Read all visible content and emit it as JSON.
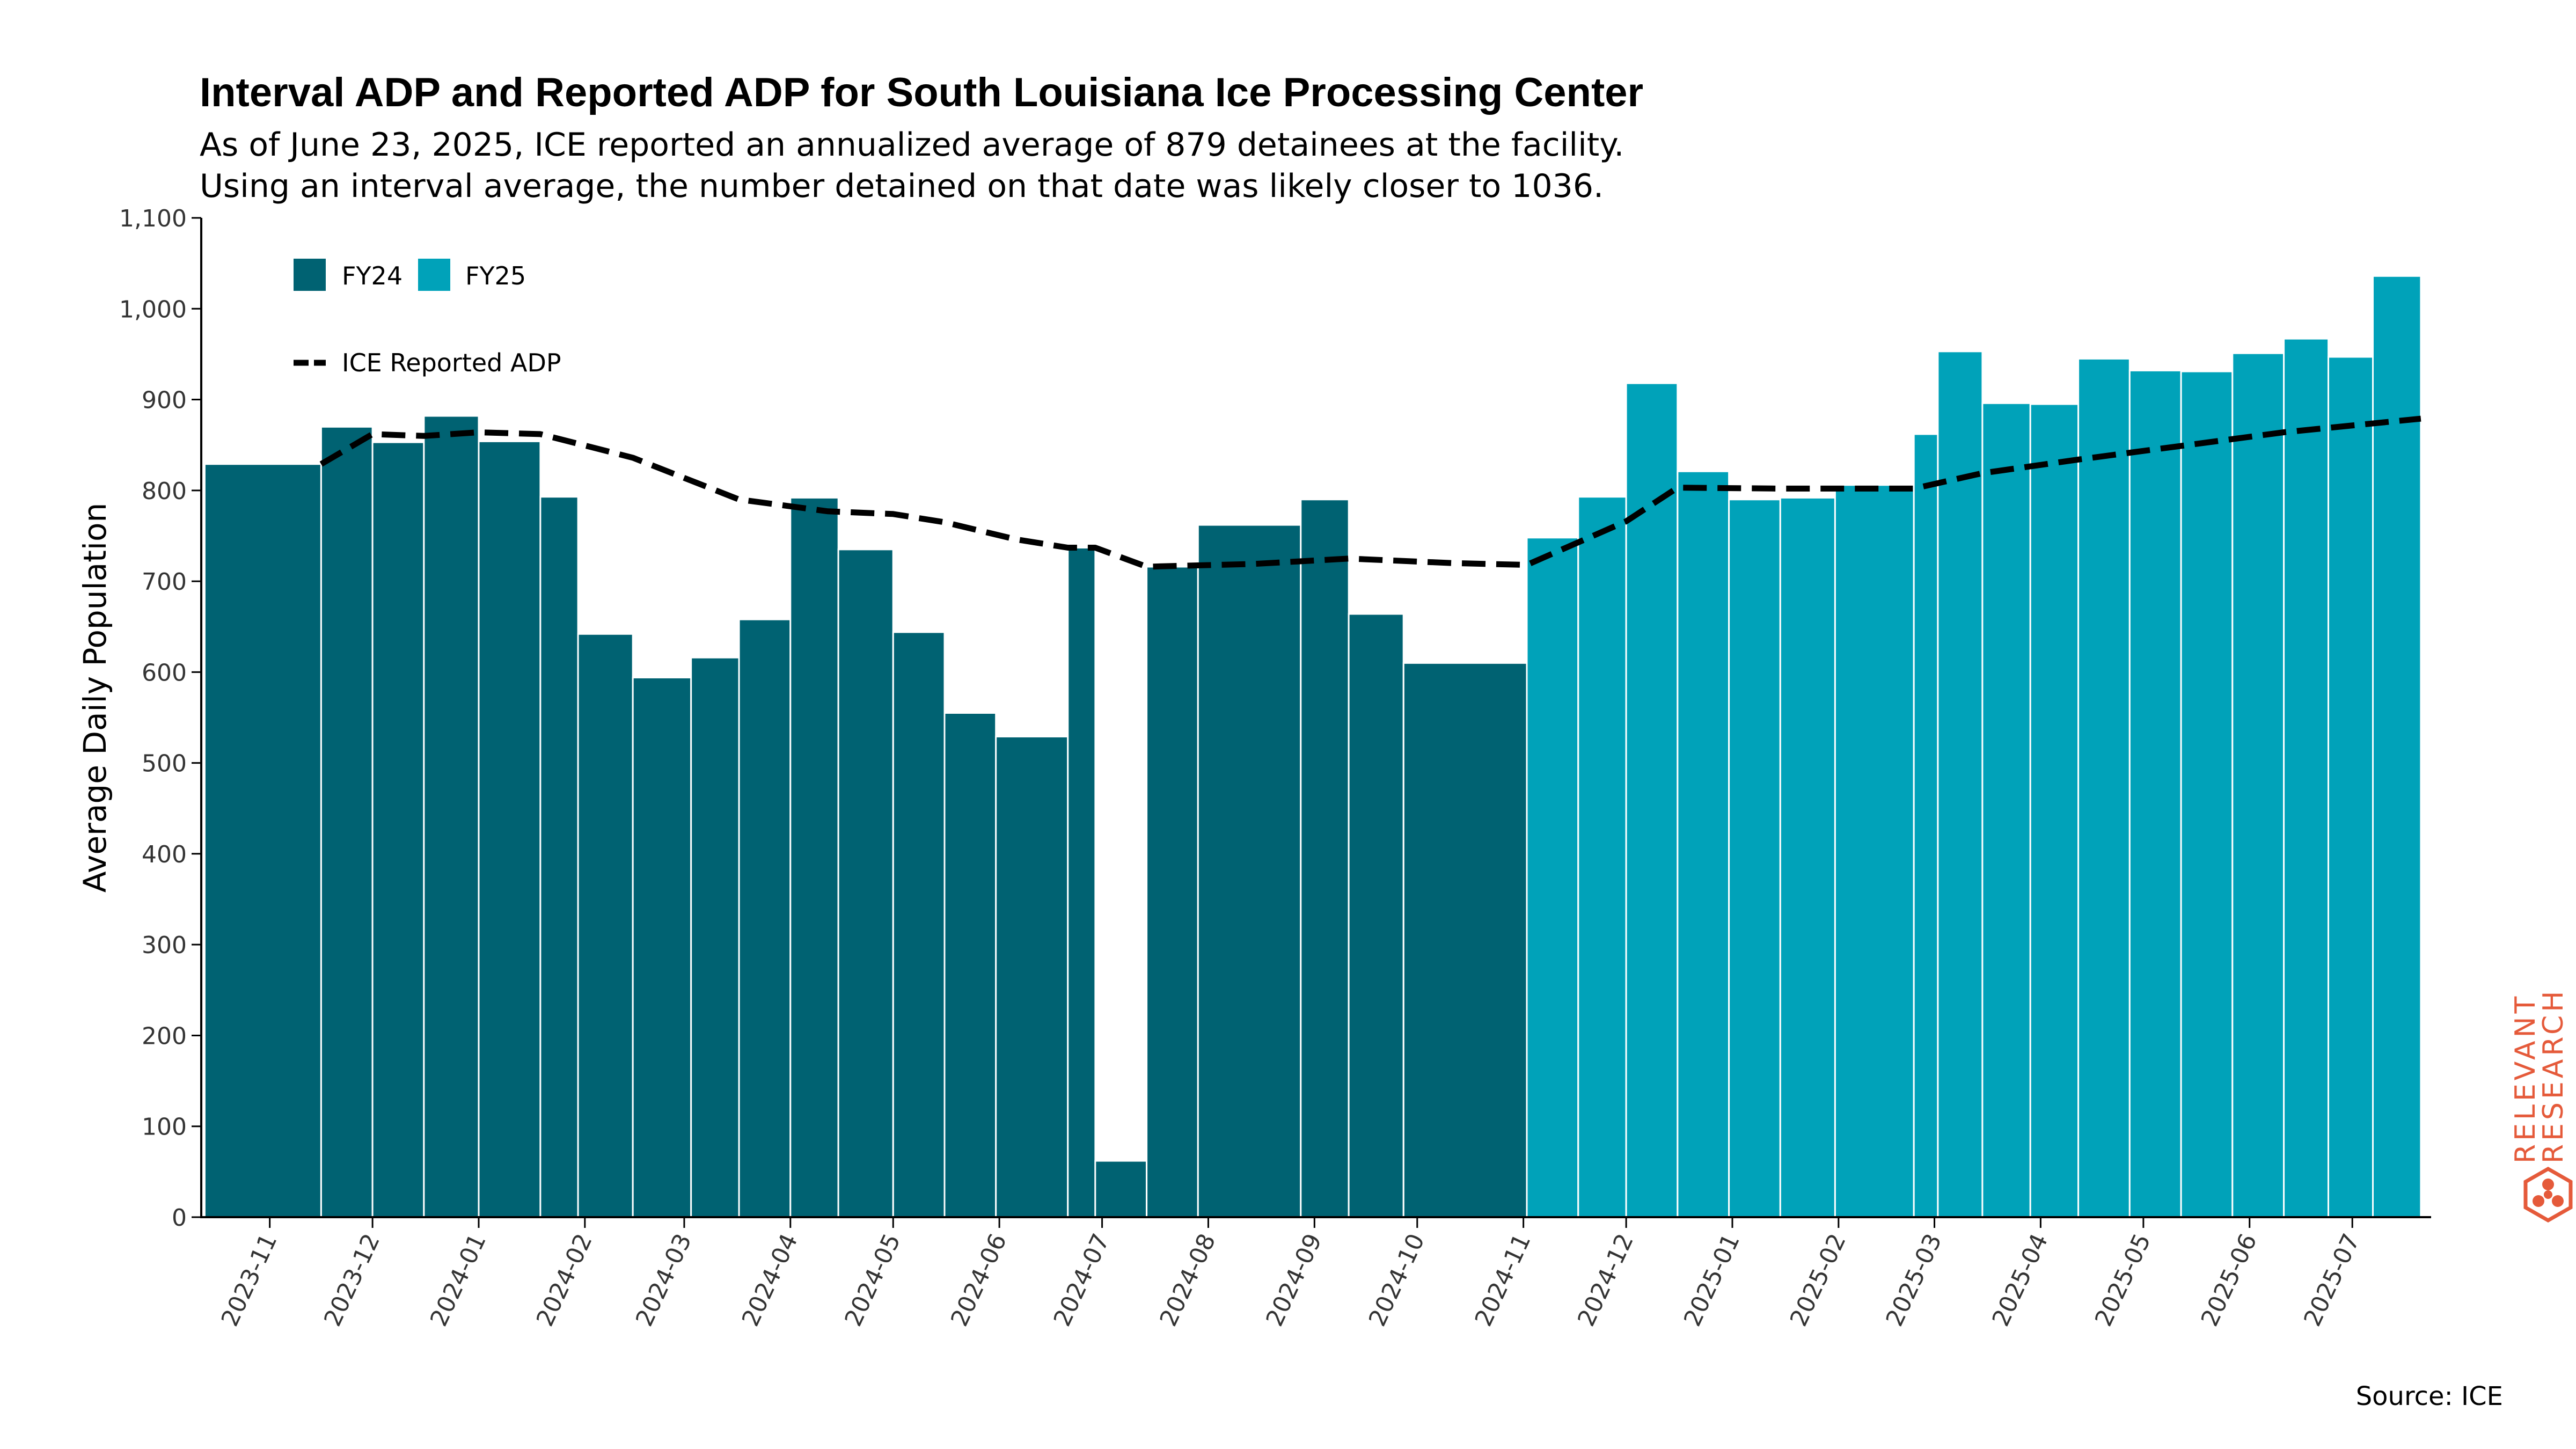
{
  "chart_data": {
    "type": "bar",
    "title": "Interval ADP and Reported ADP for South Louisiana Ice Processing Center",
    "subtitle_lines": [
      "As of June 23, 2025, ICE reported an annualized average of 879 detainees at the facility.",
      "Using an interval average, the number detained on that date was likely closer to 1036."
    ],
    "ylabel": "Average Daily Population",
    "xlabel": "",
    "ylim": [
      0,
      1100
    ],
    "yticks": [
      0,
      100,
      200,
      300,
      400,
      500,
      600,
      700,
      800,
      900,
      1000,
      1100
    ],
    "ytick_labels": [
      "0",
      "100",
      "200",
      "300",
      "400",
      "500",
      "600",
      "700",
      "800",
      "900",
      "1,000",
      "1,100"
    ],
    "xaxis_type": "date",
    "xlim": [
      "2023-10-12",
      "2025-07-24"
    ],
    "xtick_labels": [
      "2023-11",
      "2023-12",
      "2024-01",
      "2024-02",
      "2024-03",
      "2024-04",
      "2024-05",
      "2024-06",
      "2024-07",
      "2024-08",
      "2024-09",
      "2024-10",
      "2024-11",
      "2024-12",
      "2025-01",
      "2025-02",
      "2025-03",
      "2025-04",
      "2025-05",
      "2025-06",
      "2025-07"
    ],
    "xticks": [
      "2023-11-01",
      "2023-12-01",
      "2024-01-01",
      "2024-02-01",
      "2024-03-01",
      "2024-04-01",
      "2024-05-01",
      "2024-06-01",
      "2024-07-01",
      "2024-08-01",
      "2024-09-01",
      "2024-10-01",
      "2024-11-01",
      "2024-12-01",
      "2025-01-01",
      "2025-02-01",
      "2025-03-01",
      "2025-04-01",
      "2025-05-01",
      "2025-06-01",
      "2025-07-01"
    ],
    "grid": false,
    "legend_position": "top-left",
    "legend": [
      {
        "label": "FY24",
        "color": "#006272"
      },
      {
        "label": "FY25",
        "color": "#00a2b9"
      },
      {
        "label": "ICE Reported ADP",
        "style": "dashed-line",
        "color": "#000000"
      }
    ],
    "series": [
      {
        "name": "FY24",
        "color": "#006272",
        "bars": [
          {
            "start": "2023-10-13",
            "end": "2023-11-16",
            "value": 829
          },
          {
            "start": "2023-11-16",
            "end": "2023-12-01",
            "value": 870
          },
          {
            "start": "2023-12-01",
            "end": "2023-12-16",
            "value": 853
          },
          {
            "start": "2023-12-16",
            "end": "2024-01-01",
            "value": 882
          },
          {
            "start": "2024-01-01",
            "end": "2024-01-19",
            "value": 854
          },
          {
            "start": "2024-01-19",
            "end": "2024-01-30",
            "value": 793
          },
          {
            "start": "2024-01-30",
            "end": "2024-02-15",
            "value": 642
          },
          {
            "start": "2024-02-15",
            "end": "2024-03-03",
            "value": 594
          },
          {
            "start": "2024-03-03",
            "end": "2024-03-17",
            "value": 616
          },
          {
            "start": "2024-03-17",
            "end": "2024-04-01",
            "value": 658
          },
          {
            "start": "2024-04-01",
            "end": "2024-04-15",
            "value": 792
          },
          {
            "start": "2024-04-15",
            "end": "2024-05-01",
            "value": 735
          },
          {
            "start": "2024-05-01",
            "end": "2024-05-16",
            "value": 644
          },
          {
            "start": "2024-05-16",
            "end": "2024-05-31",
            "value": 555
          },
          {
            "start": "2024-05-31",
            "end": "2024-06-21",
            "value": 529
          },
          {
            "start": "2024-06-21",
            "end": "2024-06-29",
            "value": 737
          },
          {
            "start": "2024-06-29",
            "end": "2024-07-14",
            "value": 62
          },
          {
            "start": "2024-07-14",
            "end": "2024-07-29",
            "value": 716
          },
          {
            "start": "2024-07-29",
            "end": "2024-08-28",
            "value": 762
          },
          {
            "start": "2024-08-28",
            "end": "2024-09-11",
            "value": 790
          },
          {
            "start": "2024-09-11",
            "end": "2024-09-27",
            "value": 664
          },
          {
            "start": "2024-09-27",
            "end": "2024-11-02",
            "value": 610
          }
        ]
      },
      {
        "name": "FY25",
        "color": "#00a2b9",
        "bars": [
          {
            "start": "2024-11-02",
            "end": "2024-11-17",
            "value": 748
          },
          {
            "start": "2024-11-17",
            "end": "2024-12-01",
            "value": 793
          },
          {
            "start": "2024-12-01",
            "end": "2024-12-16",
            "value": 918
          },
          {
            "start": "2024-12-16",
            "end": "2024-12-31",
            "value": 821
          },
          {
            "start": "2024-12-31",
            "end": "2025-01-15",
            "value": 790
          },
          {
            "start": "2025-01-15",
            "end": "2025-01-31",
            "value": 792
          },
          {
            "start": "2025-01-31",
            "end": "2025-02-23",
            "value": 806
          },
          {
            "start": "2025-02-23",
            "end": "2025-03-02",
            "value": 862
          },
          {
            "start": "2025-03-02",
            "end": "2025-03-15",
            "value": 953
          },
          {
            "start": "2025-03-15",
            "end": "2025-03-29",
            "value": 896
          },
          {
            "start": "2025-03-29",
            "end": "2025-04-12",
            "value": 895
          },
          {
            "start": "2025-04-12",
            "end": "2025-04-27",
            "value": 945
          },
          {
            "start": "2025-04-27",
            "end": "2025-05-12",
            "value": 932
          },
          {
            "start": "2025-05-12",
            "end": "2025-05-27",
            "value": 931
          },
          {
            "start": "2025-05-27",
            "end": "2025-06-11",
            "value": 951
          },
          {
            "start": "2025-06-11",
            "end": "2025-06-24",
            "value": 967
          },
          {
            "start": "2025-06-24",
            "end": "2025-07-07",
            "value": 947
          },
          {
            "start": "2025-07-07",
            "end": "2025-07-21",
            "value": 1036
          }
        ]
      },
      {
        "name": "ICE Reported ADP",
        "type": "line",
        "style": "dashed",
        "color": "#000000",
        "points": [
          {
            "x": "2023-11-16",
            "y": 829
          },
          {
            "x": "2023-12-01",
            "y": 862
          },
          {
            "x": "2023-12-16",
            "y": 860
          },
          {
            "x": "2024-01-01",
            "y": 864
          },
          {
            "x": "2024-01-19",
            "y": 862
          },
          {
            "x": "2024-02-15",
            "y": 836
          },
          {
            "x": "2024-03-17",
            "y": 790
          },
          {
            "x": "2024-04-12",
            "y": 777
          },
          {
            "x": "2024-05-01",
            "y": 774
          },
          {
            "x": "2024-05-16",
            "y": 765
          },
          {
            "x": "2024-06-06",
            "y": 746
          },
          {
            "x": "2024-06-21",
            "y": 737
          },
          {
            "x": "2024-06-29",
            "y": 737
          },
          {
            "x": "2024-07-14",
            "y": 716
          },
          {
            "x": "2024-08-14",
            "y": 719
          },
          {
            "x": "2024-09-11",
            "y": 725
          },
          {
            "x": "2024-10-11",
            "y": 720
          },
          {
            "x": "2024-11-02",
            "y": 718
          },
          {
            "x": "2024-12-01",
            "y": 766
          },
          {
            "x": "2024-12-16",
            "y": 803
          },
          {
            "x": "2025-01-15",
            "y": 802
          },
          {
            "x": "2025-02-23",
            "y": 802
          },
          {
            "x": "2025-03-15",
            "y": 819
          },
          {
            "x": "2025-04-12",
            "y": 834
          },
          {
            "x": "2025-05-12",
            "y": 849
          },
          {
            "x": "2025-06-11",
            "y": 864
          },
          {
            "x": "2025-07-21",
            "y": 879
          }
        ]
      }
    ],
    "source": "Source: ICE"
  },
  "logo": {
    "line1": "RELEVANT",
    "line2": "RESEARCH",
    "color": "#e55a3a"
  }
}
